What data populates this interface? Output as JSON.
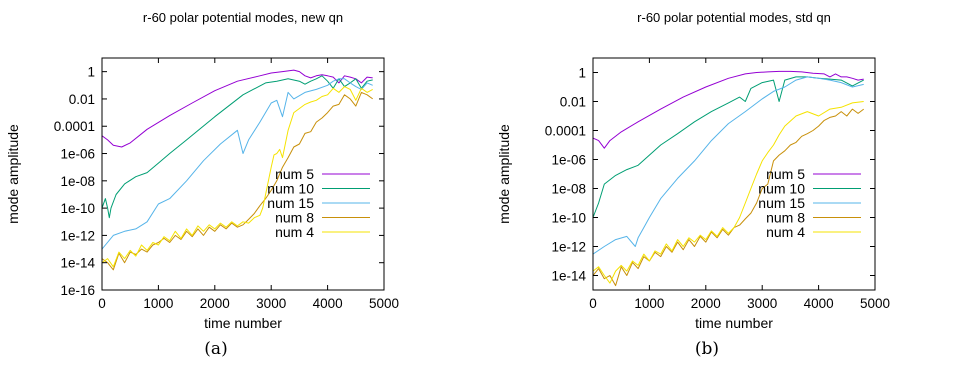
{
  "colors": {
    "num 5": "#9400d3",
    "num 10": "#009e73",
    "num 15": "#56b4e9",
    "num 8": "#c8900a",
    "num 4": "#f5e300"
  },
  "chart_data": [
    {
      "panel": "a",
      "caption": "(a)",
      "type": "line",
      "title": "r-60 polar potential modes, new qn",
      "xlabel": "time number",
      "ylabel": "mode amplitude",
      "xlim": [
        0,
        5000
      ],
      "ylim": [
        1e-16,
        10
      ],
      "yscale": "log",
      "xticks": [
        "0",
        "1000",
        "2000",
        "3000",
        "4000",
        "5000"
      ],
      "yticks": [
        "1",
        "0.01",
        "0.0001",
        "1e-06",
        "1e-08",
        "1e-10",
        "1e-12",
        "1e-14",
        "1e-16"
      ],
      "legend_position": "bottom-right",
      "series": [
        {
          "name": "num 5",
          "x": [
            0,
            100,
            200,
            350,
            500,
            800,
            1200,
            1600,
            2000,
            2400,
            2800,
            3000,
            3200,
            3400,
            3500,
            3600,
            3700,
            3800,
            3900,
            4000,
            4100,
            4200,
            4300,
            4400,
            4500,
            4600,
            4700,
            4800
          ],
          "y": [
            2e-05,
            1e-05,
            4e-06,
            3e-06,
            6e-06,
            6e-05,
            0.0006,
            0.005,
            0.04,
            0.2,
            0.5,
            0.8,
            1.0,
            1.3,
            1.0,
            0.5,
            0.35,
            0.5,
            0.6,
            0.5,
            0.4,
            0.15,
            0.5,
            0.4,
            0.3,
            0.15,
            0.4,
            0.35
          ]
        },
        {
          "name": "num 10",
          "x": [
            0,
            60,
            100,
            130,
            160,
            250,
            400,
            600,
            800,
            1000,
            1200,
            1500,
            2000,
            2500,
            2900,
            3100,
            3300,
            3500,
            3600,
            3700,
            3800,
            3900,
            4000,
            4100,
            4200,
            4300,
            4400,
            4500,
            4600,
            4700,
            4800
          ],
          "y": [
            1e-10,
            5e-10,
            1e-10,
            2e-11,
            1e-10,
            1e-09,
            6e-09,
            2e-08,
            4e-08,
            2e-07,
            1e-06,
            1e-05,
            0.0005,
            0.02,
            0.15,
            0.2,
            0.3,
            0.2,
            0.12,
            0.2,
            0.3,
            0.5,
            0.2,
            0.06,
            0.3,
            0.08,
            0.15,
            0.3,
            0.06,
            0.2,
            0.25
          ]
        },
        {
          "name": "num 15",
          "x": [
            0,
            200,
            400,
            600,
            800,
            1000,
            1200,
            1500,
            1800,
            2100,
            2400,
            2500,
            2600,
            2800,
            3000,
            3100,
            3200,
            3300,
            3400,
            3600,
            3800,
            4000,
            4100,
            4200,
            4300,
            4400,
            4500,
            4600,
            4700,
            4800
          ],
          "y": [
            1e-13,
            1e-12,
            2e-12,
            3e-12,
            1e-11,
            2e-10,
            5e-10,
            1e-08,
            3e-07,
            5e-06,
            5e-05,
            1e-06,
            1e-05,
            0.0002,
            0.005,
            0.008,
            0.0005,
            0.03,
            0.01,
            0.03,
            0.05,
            0.1,
            0.2,
            0.3,
            0.3,
            0.15,
            0.08,
            0.05,
            0.15,
            0.1
          ]
        },
        {
          "name": "num 8",
          "x": [
            0,
            100,
            200,
            300,
            400,
            500,
            600,
            700,
            800,
            900,
            1000,
            1100,
            1200,
            1300,
            1400,
            1500,
            1600,
            1700,
            1800,
            1900,
            2000,
            2100,
            2200,
            2300,
            2400,
            2500,
            2600,
            2700,
            2800,
            2900,
            3000,
            3100,
            3200,
            3300,
            3400,
            3500,
            3600,
            3700,
            3800,
            3900,
            4000,
            4100,
            4200,
            4300,
            4400,
            4500,
            4600,
            4700,
            4800
          ],
          "y": [
            2e-14,
            1e-14,
            3e-15,
            5e-14,
            1e-14,
            6e-14,
            4e-14,
            1e-13,
            6e-14,
            2e-13,
            3e-13,
            6e-13,
            3e-13,
            1e-12,
            5e-13,
            2e-12,
            8e-13,
            3e-12,
            1e-12,
            4e-12,
            2e-12,
            6e-12,
            3e-12,
            8e-12,
            4e-12,
            6e-12,
            1.5e-11,
            4e-11,
            1.5e-10,
            5e-10,
            2e-09,
            1e-08,
            1e-07,
            5e-07,
            3e-06,
            5e-06,
            3e-05,
            4e-05,
            0.0002,
            0.0004,
            0.001,
            0.003,
            0.004,
            0.02,
            0.01,
            0.003,
            0.03,
            0.02,
            0.01
          ]
        },
        {
          "name": "num 4",
          "x": [
            0,
            100,
            200,
            300,
            400,
            500,
            600,
            700,
            800,
            900,
            1000,
            1100,
            1200,
            1300,
            1400,
            1500,
            1600,
            1700,
            1800,
            1900,
            2000,
            2100,
            2200,
            2300,
            2400,
            2500,
            2600,
            2700,
            2800,
            2850,
            2900,
            2950,
            3000,
            3050,
            3100,
            3150,
            3200,
            3300,
            3400,
            3500,
            3600,
            3700,
            3800,
            3900,
            4000,
            4100,
            4200,
            4300,
            4400,
            4500,
            4600,
            4700,
            4800
          ],
          "y": [
            1e-14,
            2e-14,
            5e-15,
            6e-14,
            2e-14,
            8e-14,
            3e-14,
            2e-13,
            8e-14,
            3e-13,
            2e-13,
            8e-13,
            4e-13,
            2e-12,
            6e-13,
            3e-12,
            1e-12,
            5e-12,
            2e-12,
            6e-12,
            3e-12,
            8e-12,
            4e-12,
            1e-11,
            5e-12,
            1e-11,
            8e-12,
            2e-11,
            3e-11,
            1e-10,
            1e-09,
            1e-08,
            1e-07,
            8e-07,
            1e-06,
            2e-06,
            5e-07,
            5e-05,
            0.001,
            0.002,
            0.004,
            0.006,
            0.008,
            0.015,
            0.02,
            0.06,
            0.03,
            0.08,
            0.05,
            0.008,
            0.06,
            0.03,
            0.05
          ]
        }
      ]
    },
    {
      "panel": "b",
      "caption": "(b)",
      "type": "line",
      "title": "r-60 polar potential modes, std qn",
      "xlabel": "time number",
      "ylabel": "mode amplitude",
      "xlim": [
        0,
        5000
      ],
      "ylim": [
        1e-15,
        10
      ],
      "yscale": "log",
      "xticks": [
        "0",
        "1000",
        "2000",
        "3000",
        "4000",
        "5000"
      ],
      "yticks": [
        "1",
        "0.01",
        "0.0001",
        "1e-06",
        "1e-08",
        "1e-10",
        "1e-12",
        "1e-14"
      ],
      "legend_position": "bottom-right",
      "series": [
        {
          "name": "num 5",
          "x": [
            0,
            100,
            200,
            300,
            500,
            800,
            1200,
            1600,
            2000,
            2400,
            2700,
            2900,
            3100,
            3300,
            3500,
            3700,
            3900,
            4100,
            4200,
            4300,
            4400,
            4500,
            4600,
            4700,
            4800
          ],
          "y": [
            3e-05,
            2e-05,
            6e-06,
            2e-05,
            8e-05,
            0.0004,
            0.003,
            0.02,
            0.1,
            0.4,
            0.8,
            1.0,
            1.1,
            1.2,
            1.2,
            1.1,
            0.9,
            0.8,
            0.5,
            0.8,
            0.5,
            0.5,
            0.4,
            0.3,
            0.35
          ]
        },
        {
          "name": "num 10",
          "x": [
            0,
            100,
            200,
            400,
            600,
            800,
            1000,
            1200,
            1500,
            1800,
            2100,
            2400,
            2600,
            2700,
            2800,
            3000,
            3200,
            3300,
            3400,
            3600,
            3800,
            4000,
            4200,
            4400,
            4600,
            4800
          ],
          "y": [
            1e-10,
            1e-09,
            2e-08,
            8e-08,
            2e-07,
            4e-07,
            2e-06,
            1e-05,
            6e-05,
            0.0004,
            0.002,
            0.008,
            0.02,
            0.01,
            0.08,
            0.2,
            0.3,
            0.01,
            0.3,
            0.5,
            0.5,
            0.4,
            0.35,
            0.3,
            0.12,
            0.3
          ]
        },
        {
          "name": "num 15",
          "x": [
            0,
            200,
            400,
            600,
            750,
            800,
            900,
            1000,
            1200,
            1500,
            1800,
            2100,
            2400,
            2700,
            3000,
            3200,
            3400,
            3600,
            3800,
            4000,
            4200,
            4400,
            4600,
            4800
          ],
          "y": [
            3e-13,
            1e-12,
            3e-12,
            5e-12,
            1e-12,
            4e-12,
            2e-11,
            1e-10,
            2e-09,
            5e-08,
            8e-07,
            2e-05,
            0.0003,
            0.002,
            0.015,
            0.05,
            0.1,
            0.3,
            0.5,
            0.4,
            0.3,
            0.2,
            0.1,
            0.15
          ]
        },
        {
          "name": "num 8",
          "x": [
            0,
            100,
            200,
            300,
            400,
            500,
            600,
            700,
            800,
            900,
            1000,
            1100,
            1200,
            1300,
            1400,
            1500,
            1600,
            1700,
            1800,
            1900,
            2000,
            2100,
            2200,
            2300,
            2400,
            2500,
            2600,
            2700,
            2800,
            2900,
            3000,
            3100,
            3200,
            3300,
            3400,
            3500,
            3600,
            3700,
            3800,
            3900,
            4000,
            4100,
            4200,
            4300,
            4400,
            4500,
            4600,
            4700,
            4800
          ],
          "y": [
            1e-14,
            3e-14,
            6e-15,
            1e-14,
            2e-15,
            4e-14,
            1e-14,
            8e-14,
            3e-14,
            2e-13,
            1e-13,
            4e-13,
            2e-13,
            1e-12,
            4e-13,
            2e-12,
            6e-13,
            3e-12,
            1e-12,
            5e-12,
            2e-12,
            1e-11,
            4e-12,
            1.5e-11,
            6e-12,
            2e-11,
            3e-11,
            8e-11,
            2e-10,
            1e-09,
            1e-08,
            2e-08,
            8e-07,
            2e-06,
            4e-06,
            1e-05,
            1.5e-05,
            4e-05,
            6e-05,
            0.0001,
            0.0002,
            0.0005,
            0.0008,
            0.001,
            0.002,
            0.001,
            0.003,
            0.0015,
            0.003
          ]
        },
        {
          "name": "num 4",
          "x": [
            0,
            100,
            200,
            300,
            400,
            500,
            600,
            700,
            800,
            900,
            1000,
            1100,
            1200,
            1300,
            1400,
            1500,
            1600,
            1700,
            1800,
            1900,
            2000,
            2100,
            2200,
            2300,
            2400,
            2500,
            2600,
            2700,
            2800,
            2900,
            3000,
            3100,
            3200,
            3300,
            3400,
            3600,
            3800,
            4000,
            4200,
            4400,
            4600,
            4800
          ],
          "y": [
            2e-14,
            4e-14,
            1e-14,
            3e-15,
            2e-14,
            5e-14,
            2e-14,
            1e-13,
            5e-14,
            3e-13,
            1e-13,
            5e-13,
            3e-13,
            1.5e-12,
            5e-13,
            3e-12,
            1e-12,
            4e-12,
            2e-12,
            6e-12,
            3e-12,
            1.2e-11,
            5e-12,
            2e-11,
            8e-12,
            2e-11,
            1e-10,
            1e-09,
            1e-08,
            1e-07,
            8e-07,
            3e-06,
            1e-05,
            5e-05,
            0.0002,
            0.001,
            0.002,
            0.001,
            0.003,
            0.004,
            0.008,
            0.01
          ]
        }
      ]
    }
  ]
}
